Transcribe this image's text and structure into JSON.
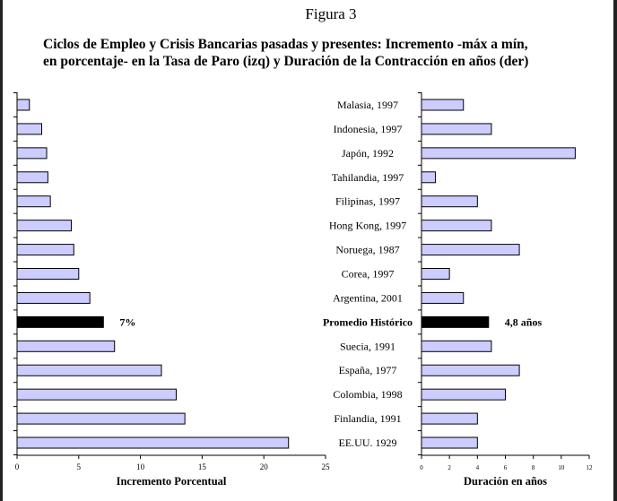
{
  "figure_label": "Figura 3",
  "title_lines": [
    "Ciclos de Empleo y Crisis Bancarias pasadas y presentes: Incremento -máx a mín,",
    "en porcentaje- en la Tasa de Paro (izq) y Duración de la Contracción en años (der)"
  ],
  "chart_data": [
    {
      "type": "bar",
      "orientation": "horizontal",
      "xlabel": "Incremento Porcentual",
      "xlim": [
        0,
        25
      ],
      "xticks": [
        0,
        5,
        10,
        15,
        20,
        25
      ],
      "categories": [
        "Malasia, 1997",
        "Indonesia, 1997",
        "Japón, 1992",
        "Tahilandia, 1997",
        "Filipinas, 1997",
        "Hong Kong, 1997",
        "Noruega, 1987",
        "Corea, 1997",
        "Argentina, 2001",
        "Promedio Histórico",
        "Suecia, 1991",
        "España, 1977",
        "Colombia, 1998",
        "Finlandia, 1991",
        "EE.UU. 1929"
      ],
      "values": [
        1.0,
        2.0,
        2.4,
        2.5,
        2.7,
        4.4,
        4.6,
        5.0,
        5.9,
        7.0,
        7.9,
        11.7,
        12.9,
        13.6,
        22.0
      ],
      "highlight": {
        "category": "Promedio Histórico",
        "label": "7%"
      },
      "colors": {
        "bar": "#ccccff",
        "highlight": "#000000"
      }
    },
    {
      "type": "bar",
      "orientation": "horizontal",
      "xlabel": "Duración en años",
      "xlim": [
        0,
        12
      ],
      "xticks": [
        0,
        2,
        4,
        6,
        8,
        10,
        12
      ],
      "categories": [
        "Malasia, 1997",
        "Indonesia, 1997",
        "Japón, 1992",
        "Tahilandia, 1997",
        "Filipinas, 1997",
        "Hong Kong, 1997",
        "Noruega, 1987",
        "Corea, 1997",
        "Argentina, 2001",
        "Promedio Histórico",
        "Suecia, 1991",
        "España, 1977",
        "Colombia, 1998",
        "Finlandia, 1991",
        "EE.UU. 1929"
      ],
      "values": [
        3,
        5,
        11,
        1,
        4,
        5,
        7,
        2,
        3,
        4.8,
        5,
        7,
        6,
        4,
        4
      ],
      "highlight": {
        "category": "Promedio Histórico",
        "label": "4,8 años"
      },
      "colors": {
        "bar": "#ccccff",
        "highlight": "#000000"
      }
    }
  ]
}
